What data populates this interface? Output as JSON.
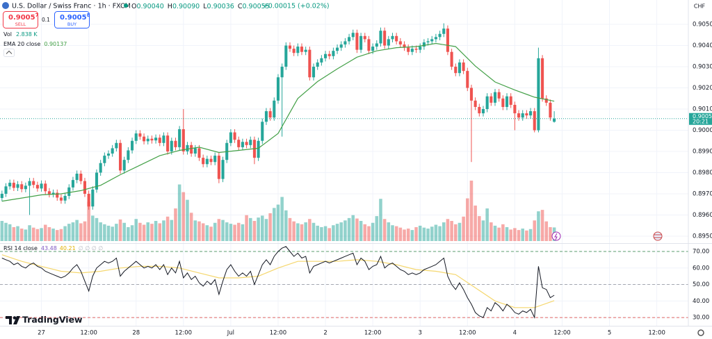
{
  "header": {
    "title": "U.S. Dollar / Swiss Franc · 1h · FXCM",
    "ohlc": [
      {
        "k": "O",
        "v": "0.90040"
      },
      {
        "k": "H",
        "v": "0.90090"
      },
      {
        "k": "L",
        "v": "0.90036"
      },
      {
        "k": "C",
        "v": "0.90055"
      }
    ],
    "change": "+0.00015 (+0.02%)",
    "sell": {
      "price": "0.9005",
      "pip": "7",
      "label": "SELL"
    },
    "spread": "0.1",
    "buy": {
      "price": "0.9005",
      "pip": "8",
      "label": "BUY"
    },
    "volume": {
      "label": "Vol",
      "value": "2.838 K"
    },
    "ema_label": "EMA 20 close",
    "rsi_label": "RSI 14 close",
    "rsi_extra": "∅ ∅ ∅ ∅",
    "currency": "CHF",
    "logo": "TradingView"
  },
  "chart_data": {
    "type": "candlestick",
    "title": "U.S. Dollar / Swiss Franc · 1h · FXCM",
    "up_color": "#26a69a",
    "down_color": "#ef5350",
    "xlim": [
      -0.5,
      174
    ],
    "xticks": [
      {
        "value": 10,
        "label": "27"
      },
      {
        "value": 22,
        "label": "12:00"
      },
      {
        "value": 34,
        "label": "28"
      },
      {
        "value": 46,
        "label": "12:00"
      },
      {
        "value": 58,
        "label": "Jul"
      },
      {
        "value": 70,
        "label": "12:00"
      },
      {
        "value": 82,
        "label": "2"
      },
      {
        "value": 94,
        "label": "12:00"
      },
      {
        "value": 106,
        "label": "3"
      },
      {
        "value": 118,
        "label": "12:00"
      },
      {
        "value": 130,
        "label": "4"
      },
      {
        "value": 142,
        "label": "12:00"
      },
      {
        "value": 154,
        "label": "5"
      },
      {
        "value": 166,
        "label": "12:00"
      }
    ],
    "ylim": [
      0.89467,
      0.90615
    ],
    "yticks": [
      {
        "value": 0.895,
        "label": "0.89500"
      },
      {
        "value": 0.896,
        "label": "0.89600"
      },
      {
        "value": 0.897,
        "label": "0.89700"
      },
      {
        "value": 0.898,
        "label": "0.89800"
      },
      {
        "value": 0.899,
        "label": "0.89900"
      },
      {
        "value": 0.9,
        "label": "0.90000"
      },
      {
        "value": 0.901,
        "label": "0.90100"
      },
      {
        "value": 0.902,
        "label": "0.90200"
      },
      {
        "value": 0.903,
        "label": "0.90300"
      },
      {
        "value": 0.904,
        "label": "0.90400"
      },
      {
        "value": 0.905,
        "label": "0.90500"
      }
    ],
    "grid": true,
    "open": [
      0.8968,
      0.897,
      0.89735,
      0.89752,
      0.89728,
      0.89745,
      0.89722,
      0.89738,
      0.8976,
      0.89742,
      0.89725,
      0.89748,
      0.89712,
      0.89698,
      0.89705,
      0.89682,
      0.89668,
      0.8969,
      0.8973,
      0.89765,
      0.89795,
      0.8976,
      0.897,
      0.8964,
      0.8972,
      0.898,
      0.89845,
      0.8988,
      0.8989,
      0.89915,
      0.8994,
      0.8981,
      0.8986,
      0.89905,
      0.8995,
      0.89985,
      0.8997,
      0.89948,
      0.8996,
      0.89952,
      0.89965,
      0.8994,
      0.89975,
      0.899,
      0.8995,
      0.8992,
      0.90005,
      0.899,
      0.8993,
      0.8989,
      0.89915,
      0.8987,
      0.8984,
      0.89865,
      0.8985,
      0.8988,
      0.8977,
      0.8986,
      0.8994,
      0.8999,
      0.89955,
      0.8992,
      0.89945,
      0.8993,
      0.89955,
      0.8987,
      0.8995,
      0.9004,
      0.9009,
      0.9006,
      0.9014,
      0.9025,
      0.903,
      0.904,
      0.90385,
      0.90365,
      0.90395,
      0.9037,
      0.9038,
      0.9025,
      0.903,
      0.9032,
      0.9034,
      0.9036,
      0.9035,
      0.90375,
      0.9039,
      0.90405,
      0.9042,
      0.9044,
      0.9046,
      0.9038,
      0.90445,
      0.9043,
      0.90375,
      0.90395,
      0.9041,
      0.9047,
      0.904,
      0.9043,
      0.90445,
      0.9042,
      0.90405,
      0.9039,
      0.9037,
      0.90385,
      0.9038,
      0.90395,
      0.90415,
      0.9042,
      0.9043,
      0.9044,
      0.90455,
      0.9048,
      0.9037,
      0.903,
      0.9027,
      0.9032,
      0.9028,
      0.902,
      0.9014,
      0.9011,
      0.9008,
      0.901,
      0.9016,
      0.9013,
      0.9018,
      0.9015,
      0.9011,
      0.9016,
      0.9012,
      0.9008,
      0.9006,
      0.9008,
      0.9007,
      0.9009,
      0.9,
      0.9034,
      0.9015,
      0.9013,
      0.9004
    ],
    "high": [
      0.89715,
      0.8975,
      0.89767,
      0.89767,
      0.8976,
      0.8976,
      0.89753,
      0.89775,
      0.89775,
      0.89757,
      0.89763,
      0.89763,
      0.89727,
      0.8972,
      0.8972,
      0.89697,
      0.89705,
      0.89745,
      0.8978,
      0.8981,
      0.8981,
      0.89775,
      0.89715,
      0.89735,
      0.89815,
      0.8986,
      0.89895,
      0.89905,
      0.8993,
      0.89955,
      0.89955,
      0.89875,
      0.8992,
      0.89965,
      0.9,
      0.9,
      0.89985,
      0.89975,
      0.89975,
      0.8998,
      0.8998,
      0.8999,
      0.8999,
      0.89965,
      0.89965,
      0.9002,
      0.901,
      0.89945,
      0.89945,
      0.8993,
      0.8993,
      0.89885,
      0.8988,
      0.8988,
      0.89895,
      0.89895,
      0.89875,
      0.89955,
      0.90005,
      0.90005,
      0.8997,
      0.8996,
      0.8996,
      0.8997,
      0.8997,
      0.89965,
      0.90055,
      0.90105,
      0.90105,
      0.90155,
      0.90265,
      0.90315,
      0.90415,
      0.90415,
      0.904,
      0.9041,
      0.9041,
      0.90395,
      0.90395,
      0.90315,
      0.90335,
      0.90355,
      0.90375,
      0.90375,
      0.9039,
      0.90405,
      0.9042,
      0.90435,
      0.90455,
      0.90475,
      0.90475,
      0.9046,
      0.9046,
      0.90445,
      0.9041,
      0.90425,
      0.90485,
      0.90485,
      0.90445,
      0.9046,
      0.9046,
      0.90435,
      0.9042,
      0.90405,
      0.904,
      0.904,
      0.9041,
      0.9043,
      0.90435,
      0.90445,
      0.90455,
      0.9047,
      0.90505,
      0.90495,
      0.90385,
      0.90315,
      0.90335,
      0.90335,
      0.90295,
      0.90215,
      0.90155,
      0.90125,
      0.90115,
      0.90175,
      0.90175,
      0.90195,
      0.90195,
      0.90165,
      0.90175,
      0.90175,
      0.90135,
      0.90095,
      0.90095,
      0.90095,
      0.90105,
      0.90105,
      0.9039,
      0.90355,
      0.90165,
      0.90145,
      0.9009
    ],
    "low": [
      0.89665,
      0.89685,
      0.8972,
      0.89713,
      0.89713,
      0.89707,
      0.89707,
      0.896,
      0.89727,
      0.8971,
      0.8971,
      0.89697,
      0.89683,
      0.89683,
      0.89667,
      0.89653,
      0.89653,
      0.89675,
      0.89715,
      0.8975,
      0.89745,
      0.89685,
      0.89625,
      0.89625,
      0.89705,
      0.89785,
      0.8983,
      0.89865,
      0.89875,
      0.899,
      0.89795,
      0.89795,
      0.89845,
      0.8989,
      0.89935,
      0.89955,
      0.89933,
      0.89933,
      0.89937,
      0.89937,
      0.89925,
      0.89925,
      0.89885,
      0.89885,
      0.89905,
      0.89905,
      0.89885,
      0.89885,
      0.89875,
      0.89875,
      0.89855,
      0.89825,
      0.89825,
      0.89835,
      0.89835,
      0.8975,
      0.89755,
      0.89845,
      0.89925,
      0.8994,
      0.89905,
      0.89905,
      0.89915,
      0.89915,
      0.8984,
      0.89855,
      0.89935,
      0.90025,
      0.90045,
      0.90045,
      0.90125,
      0.8997,
      0.90285,
      0.9037,
      0.9035,
      0.9035,
      0.90355,
      0.90355,
      0.90235,
      0.90235,
      0.90285,
      0.90305,
      0.90325,
      0.90335,
      0.90335,
      0.9036,
      0.90375,
      0.9039,
      0.90405,
      0.90425,
      0.90365,
      0.90365,
      0.90415,
      0.9036,
      0.9036,
      0.9038,
      0.90395,
      0.90385,
      0.90385,
      0.90415,
      0.90405,
      0.9039,
      0.90375,
      0.90355,
      0.90355,
      0.90365,
      0.90365,
      0.9038,
      0.904,
      0.90405,
      0.90415,
      0.90425,
      0.9044,
      0.90355,
      0.90285,
      0.90255,
      0.90255,
      0.90265,
      0.90185,
      0.8985,
      0.90095,
      0.90065,
      0.90065,
      0.90085,
      0.90115,
      0.90115,
      0.90135,
      0.90095,
      0.90095,
      0.90105,
      0.9,
      0.90045,
      0.90045,
      0.90055,
      0.90055,
      0.8999,
      0.8999,
      0.90135,
      0.90115,
      0.90045,
      0.90036
    ],
    "close": [
      0.897,
      0.89735,
      0.89752,
      0.89728,
      0.89745,
      0.89722,
      0.89738,
      0.8976,
      0.89742,
      0.89725,
      0.89748,
      0.89712,
      0.89698,
      0.89705,
      0.89682,
      0.89668,
      0.8969,
      0.8973,
      0.89765,
      0.89795,
      0.8976,
      0.897,
      0.8964,
      0.8972,
      0.898,
      0.89845,
      0.8988,
      0.8989,
      0.89915,
      0.8994,
      0.8981,
      0.8986,
      0.89905,
      0.8995,
      0.89985,
      0.8997,
      0.89948,
      0.8996,
      0.89952,
      0.89965,
      0.8994,
      0.89975,
      0.899,
      0.8995,
      0.8992,
      0.90005,
      0.899,
      0.8993,
      0.8989,
      0.89915,
      0.8987,
      0.8984,
      0.89865,
      0.8985,
      0.8988,
      0.8977,
      0.8986,
      0.8994,
      0.8999,
      0.89955,
      0.8992,
      0.89945,
      0.8993,
      0.89955,
      0.8987,
      0.8995,
      0.9004,
      0.9009,
      0.9006,
      0.9014,
      0.9025,
      0.903,
      0.904,
      0.90385,
      0.90365,
      0.90395,
      0.9037,
      0.9038,
      0.9025,
      0.903,
      0.9032,
      0.9034,
      0.9036,
      0.9035,
      0.90375,
      0.9039,
      0.90405,
      0.9042,
      0.9044,
      0.9046,
      0.9038,
      0.90445,
      0.9043,
      0.90375,
      0.90395,
      0.9041,
      0.9047,
      0.904,
      0.9043,
      0.90445,
      0.9042,
      0.90405,
      0.9039,
      0.9037,
      0.90385,
      0.9038,
      0.90395,
      0.90415,
      0.9042,
      0.9043,
      0.9044,
      0.90455,
      0.9048,
      0.9037,
      0.903,
      0.9027,
      0.9032,
      0.9028,
      0.902,
      0.9014,
      0.9011,
      0.9008,
      0.901,
      0.9016,
      0.9013,
      0.9018,
      0.9015,
      0.9011,
      0.9016,
      0.9012,
      0.9008,
      0.9006,
      0.9008,
      0.9007,
      0.9009,
      0.9,
      0.9034,
      0.9015,
      0.9013,
      0.9006,
      0.90055
    ],
    "volume": {
      "name": "Vol",
      "values": [
        4.2,
        3.8,
        3.5,
        2.9,
        3.1,
        2.6,
        2.4,
        3.3,
        2.8,
        2.5,
        2.7,
        3.4,
        2.9,
        2.6,
        2.3,
        2.5,
        3.1,
        3.6,
        3.9,
        4.4,
        3.7,
        4.1,
        8.2,
        5.3,
        4.8,
        3.9,
        3.5,
        3.2,
        3.0,
        3.6,
        4.5,
        3.8,
        2.9,
        3.3,
        4.6,
        3.8,
        3.4,
        3.9,
        3.6,
        4.2,
        3.7,
        4.3,
        5.1,
        4.4,
        6.8,
        11.8,
        10.2,
        8.6,
        5.9,
        4.3,
        4.1,
        3.7,
        3.3,
        3.0,
        3.8,
        4.6,
        4.4,
        3.9,
        3.6,
        3.4,
        3.8,
        3.5,
        5.4,
        4.8,
        4.2,
        4.9,
        5.3,
        4.6,
        5.8,
        6.9,
        7.6,
        9.2,
        6.4,
        4.8,
        4.1,
        3.7,
        3.5,
        3.9,
        4.6,
        3.8,
        3.2,
        2.9,
        3.1,
        2.7,
        3.3,
        3.6,
        3.9,
        4.3,
        4.8,
        5.4,
        4.7,
        4.2,
        3.5,
        3.1,
        3.8,
        5.2,
        8.8,
        4.6,
        3.9,
        3.3,
        3.1,
        2.8,
        2.4,
        2.6,
        2.3,
        2.9,
        3.2,
        2.8,
        2.6,
        3.0,
        3.4,
        3.1,
        3.9,
        4.6,
        4.2,
        3.5,
        3.8,
        5.1,
        8.9,
        12.6,
        7.4,
        5.2,
        4.3,
        6.8,
        3.9,
        3.2,
        2.8,
        3.5,
        2.9,
        2.4,
        2.7,
        2.3,
        2.6,
        2.2,
        2.5,
        4.3,
        6.2,
        6.5,
        4.1,
        2.9,
        2.838
      ]
    },
    "ema": {
      "name": "EMA 20 close",
      "color": "#43a047",
      "x": [
        0,
        5,
        10,
        15,
        20,
        25,
        30,
        35,
        40,
        45,
        50,
        55,
        60,
        65,
        70,
        75,
        80,
        85,
        90,
        95,
        100,
        105,
        110,
        115,
        120,
        125,
        130,
        135,
        140
      ],
      "values": [
        0.89665,
        0.8968,
        0.89695,
        0.897,
        0.89715,
        0.8974,
        0.8979,
        0.89835,
        0.8988,
        0.89905,
        0.8992,
        0.89895,
        0.89905,
        0.89915,
        0.89985,
        0.9015,
        0.9023,
        0.9029,
        0.90345,
        0.90375,
        0.9039,
        0.90395,
        0.9041,
        0.90395,
        0.90303,
        0.90228,
        0.9019,
        0.90156,
        0.90137
      ]
    },
    "last_price": 0.90055,
    "countdown": "20:21",
    "rsi": {
      "type": "line",
      "name": "RSI 14 close",
      "color": "#131722",
      "ylim": [
        25.4,
        74.2
      ],
      "yticks": [
        {
          "value": 30,
          "label": "30.00"
        },
        {
          "value": 40,
          "label": "40.00"
        },
        {
          "value": 50,
          "label": "50.00"
        },
        {
          "value": 60,
          "label": "60.00"
        },
        {
          "value": 70,
          "label": "70.00"
        }
      ],
      "levels": [
        {
          "value": 70,
          "color": "#5b9c6e"
        },
        {
          "value": 50,
          "color": "#a3a6af"
        },
        {
          "value": 30,
          "color": "#e06666"
        }
      ],
      "values": [
        66,
        65,
        64,
        62,
        63,
        61,
        60,
        62,
        63,
        61,
        60,
        58,
        57,
        56,
        55,
        54,
        55,
        57,
        60,
        62,
        58,
        52,
        46,
        55,
        60,
        62,
        64,
        63,
        64,
        66,
        55,
        58,
        60,
        62,
        64,
        62,
        60,
        61,
        60,
        62,
        59,
        62,
        56,
        60,
        57,
        64,
        54,
        57,
        53,
        55,
        51,
        49,
        52,
        50,
        53,
        44,
        52,
        59,
        62,
        58,
        55,
        57,
        55,
        58,
        50,
        56,
        62,
        65,
        62,
        67,
        70,
        72,
        73,
        70,
        67,
        69,
        66,
        67,
        57,
        61,
        62,
        63,
        64,
        63,
        64,
        65,
        66,
        67,
        68,
        69,
        62,
        66,
        64,
        59,
        61,
        62,
        67,
        60,
        62,
        63,
        61,
        59,
        58,
        56,
        57,
        56,
        57,
        59,
        60,
        61,
        62,
        64,
        66,
        55,
        50,
        47,
        51,
        47,
        42,
        38,
        33,
        31,
        30,
        36,
        34,
        39,
        37,
        34,
        38,
        36,
        33,
        32,
        34,
        33,
        35,
        30,
        61,
        48,
        47,
        42,
        43.48
      ],
      "ma": {
        "color": "#f5d76e",
        "x": [
          0,
          5,
          10,
          15,
          20,
          25,
          30,
          35,
          40,
          45,
          50,
          55,
          60,
          65,
          70,
          75,
          80,
          85,
          90,
          95,
          100,
          105,
          110,
          115,
          120,
          125,
          130,
          135,
          140
        ],
        "values": [
          68,
          64,
          61,
          58,
          57,
          58,
          60,
          61,
          61,
          60,
          57,
          54,
          54,
          55,
          60,
          64,
          64,
          64,
          65,
          64,
          62,
          59,
          58,
          56,
          48,
          40,
          36,
          36,
          40.21
        ]
      }
    }
  }
}
